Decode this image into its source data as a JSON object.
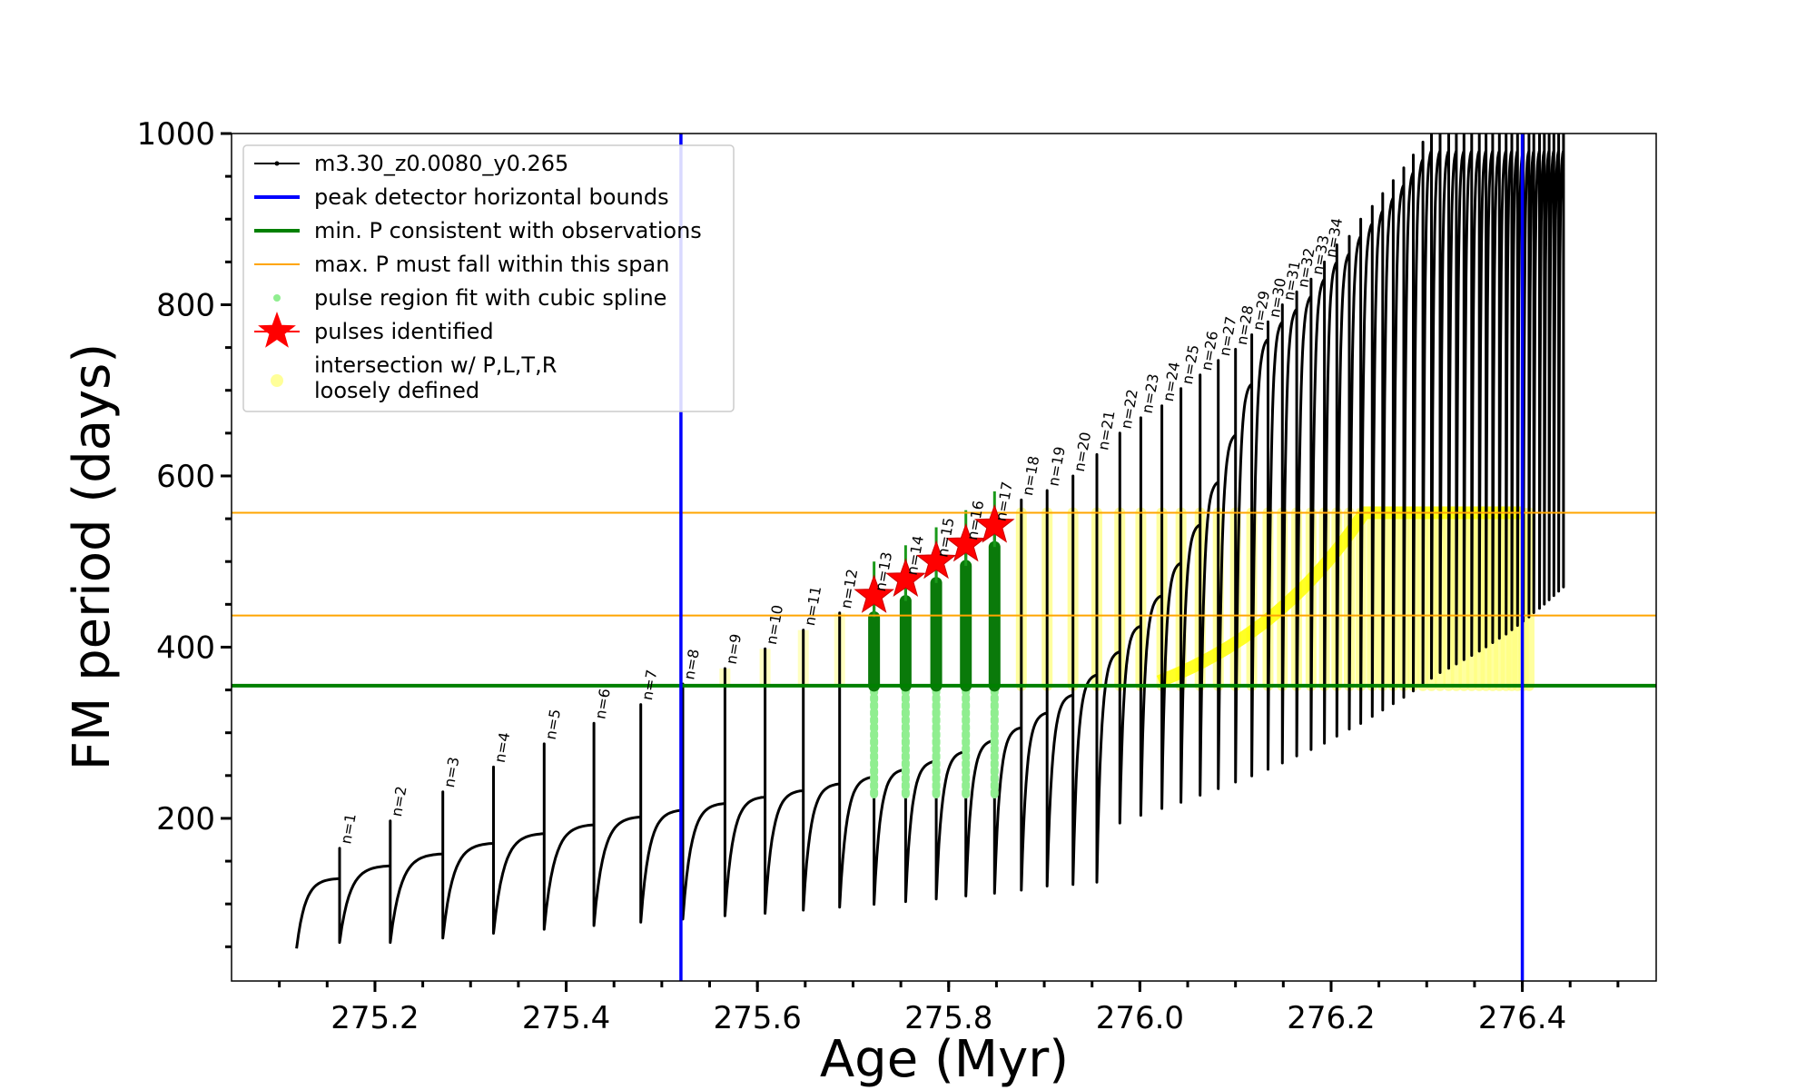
{
  "chart_data": {
    "type": "scatter",
    "xlabel": "Age (Myr)",
    "ylabel": "FM period (days)",
    "xlim": [
      275.05,
      276.54
    ],
    "ylim": [
      10,
      1000
    ],
    "xticks": [
      275.2,
      275.4,
      275.6,
      275.8,
      276.0,
      276.2,
      276.4
    ],
    "xtick_labels": [
      "275.2",
      "275.4",
      "275.6",
      "275.8",
      "276.0",
      "276.2",
      "276.4"
    ],
    "yticks": [
      200,
      400,
      600,
      800,
      1000
    ],
    "ytick_labels": [
      "200",
      "400",
      "600",
      "800",
      "1000"
    ],
    "grid": false,
    "legend_position": "top-left",
    "legend": [
      {
        "label": "m3.30_z0.0080_y0.265",
        "color": "#000000",
        "kind": "line-marker"
      },
      {
        "label": "peak detector horizontal bounds",
        "color": "#0000ff",
        "kind": "line"
      },
      {
        "label": "min. P consistent with observations",
        "color": "#008000",
        "kind": "line"
      },
      {
        "label": "max. P must fall within this span",
        "color": "#ffa500",
        "kind": "thin-line"
      },
      {
        "label": "pulse region fit with cubic spline",
        "color": "#90ee90",
        "kind": "dot"
      },
      {
        "label": "pulses identified",
        "color": "#ff0000",
        "kind": "star"
      },
      {
        "label": "intersection w/ P,L,T,R",
        "label2": "loosely defined",
        "color": "#ffff99",
        "kind": "big-dot"
      }
    ],
    "vertical_lines": [
      {
        "name": "peak detector horizontal bounds",
        "x": 275.52,
        "color": "#0000ff"
      },
      {
        "name": "peak detector horizontal bounds",
        "x": 276.4,
        "color": "#0000ff"
      }
    ],
    "horizontal_lines": [
      {
        "name": "min. P consistent with observations",
        "y": 355,
        "color": "#008000"
      },
      {
        "name": "max. P must fall within this span",
        "y": 437,
        "color": "#ffa500"
      },
      {
        "name": "max. P must fall within this span",
        "y": 557,
        "color": "#ffa500"
      }
    ],
    "series": [
      {
        "name": "m3.30_z0.0080_y0.265",
        "kind": "pulses",
        "pulse_ages": [
          275.163,
          275.216,
          275.271,
          275.324,
          275.377,
          275.429,
          275.478,
          275.522,
          275.566,
          275.608,
          275.648,
          275.686,
          275.722,
          275.755,
          275.787,
          275.818,
          275.848,
          275.876,
          275.903,
          275.93,
          275.955,
          275.979,
          276.001,
          276.023,
          276.043,
          276.063,
          276.082,
          276.1,
          276.117,
          276.134,
          276.149,
          276.164,
          276.179,
          276.193,
          276.206,
          276.219,
          276.231,
          276.243,
          276.254,
          276.265,
          276.276,
          276.286,
          276.296,
          276.305,
          276.314,
          276.323,
          276.331,
          276.339,
          276.347,
          276.355,
          276.362,
          276.369,
          276.376,
          276.383,
          276.389,
          276.395,
          276.401,
          276.407,
          276.412,
          276.418,
          276.423,
          276.428,
          276.433,
          276.438,
          276.443
        ],
        "pulse_peaks": [
          165,
          197,
          231,
          260,
          287,
          311,
          333,
          357,
          375,
          398,
          420,
          440,
          460,
          479,
          500,
          520,
          542,
          572,
          583,
          600,
          625,
          650,
          668,
          682,
          702,
          718,
          735,
          748,
          765,
          780,
          800,
          815,
          830,
          850,
          870,
          880,
          900,
          915,
          930,
          945,
          960,
          975,
          990,
          1000,
          1000,
          1000,
          1000,
          1000,
          1000,
          1000,
          1000,
          1000,
          1000,
          1000,
          1000,
          1000,
          1000,
          1000,
          1000,
          1000,
          1000,
          1000,
          1000,
          1000,
          1000
        ]
      },
      {
        "name": "pulses identified",
        "kind": "stars",
        "x": [
          275.722,
          275.755,
          275.787,
          275.818,
          275.848
        ],
        "y": [
          460,
          479,
          500,
          520,
          542
        ]
      }
    ],
    "annotations": [
      "n=1",
      "n=2",
      "n=3",
      "n=4",
      "n=5",
      "n=6",
      "n=7",
      "n=8",
      "n=9",
      "n=10",
      "n=11",
      "n=12",
      "n=13",
      "n=14",
      "n=15",
      "n=16",
      "n=17",
      "n=18",
      "n=19",
      "n=20",
      "n=21",
      "n=22",
      "n=23",
      "n=24",
      "n=25",
      "n=26",
      "n=27",
      "n=28",
      "n=29",
      "n=30",
      "n=31",
      "n=32",
      "n=33",
      "n=34"
    ]
  }
}
